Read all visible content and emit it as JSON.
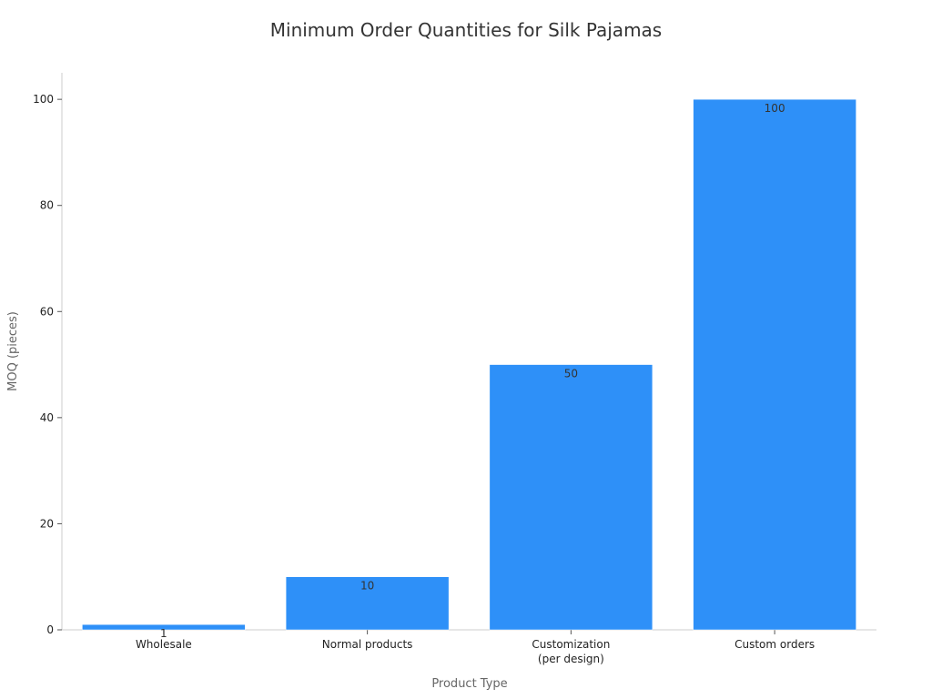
{
  "chart_data": {
    "type": "bar",
    "title": "Minimum Order Quantities for Silk Pajamas",
    "xlabel": "Product Type",
    "ylabel": "MOQ (pieces)",
    "categories": [
      [
        "Wholesale"
      ],
      [
        "Normal products"
      ],
      [
        "Customization",
        "(per design)"
      ],
      [
        "Custom orders"
      ]
    ],
    "values": [
      1,
      10,
      50,
      100
    ],
    "ylim": [
      0,
      105
    ],
    "yticks": [
      0,
      20,
      40,
      60,
      80,
      100
    ],
    "grid": false,
    "bar_color": "#2E90F8"
  }
}
